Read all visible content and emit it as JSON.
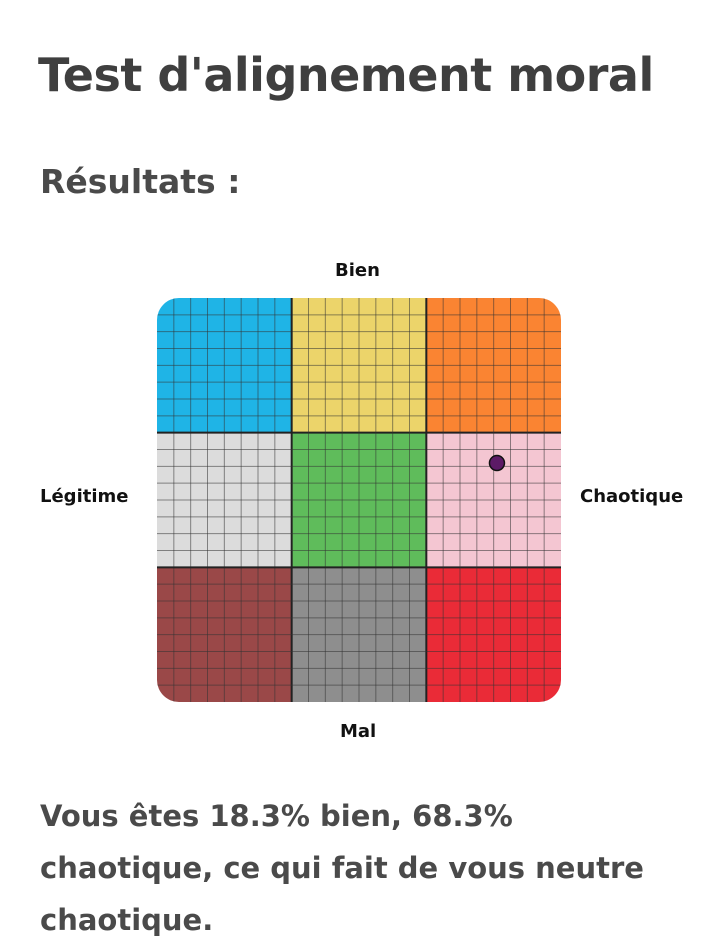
{
  "page": {
    "title": "Test d'alignement moral",
    "subtitle": "Résultats :"
  },
  "chart_data": {
    "type": "scatter",
    "axis_labels": {
      "top": "Bien",
      "bottom": "Mal",
      "left": "Légitime",
      "right": "Chaotique"
    },
    "x_axis": {
      "from": "Légitime",
      "to": "Chaotique",
      "range": [
        -100,
        100
      ]
    },
    "y_axis": {
      "from": "Mal",
      "to": "Bien",
      "range": [
        -100,
        100
      ]
    },
    "grid": true,
    "cells": [
      {
        "row": 0,
        "col": 0,
        "color": "#1fb4e6"
      },
      {
        "row": 0,
        "col": 1,
        "color": "#ecd46a"
      },
      {
        "row": 0,
        "col": 2,
        "color": "#fa8432"
      },
      {
        "row": 1,
        "col": 0,
        "color": "#dcdcdc"
      },
      {
        "row": 1,
        "col": 1,
        "color": "#5fbc5b"
      },
      {
        "row": 1,
        "col": 2,
        "color": "#f4c6d2"
      },
      {
        "row": 2,
        "col": 0,
        "color": "#9a4848"
      },
      {
        "row": 2,
        "col": 1,
        "color": "#8e8e8e"
      },
      {
        "row": 2,
        "col": 2,
        "color": "#ea2b37"
      }
    ],
    "points": [
      {
        "x": 68.3,
        "y": 18.3,
        "color": "#5c1a66"
      }
    ]
  },
  "result": {
    "text": "Vous êtes 18.3% bien, 68.3% chaotique, ce qui fait de vous neutre chaotique."
  }
}
